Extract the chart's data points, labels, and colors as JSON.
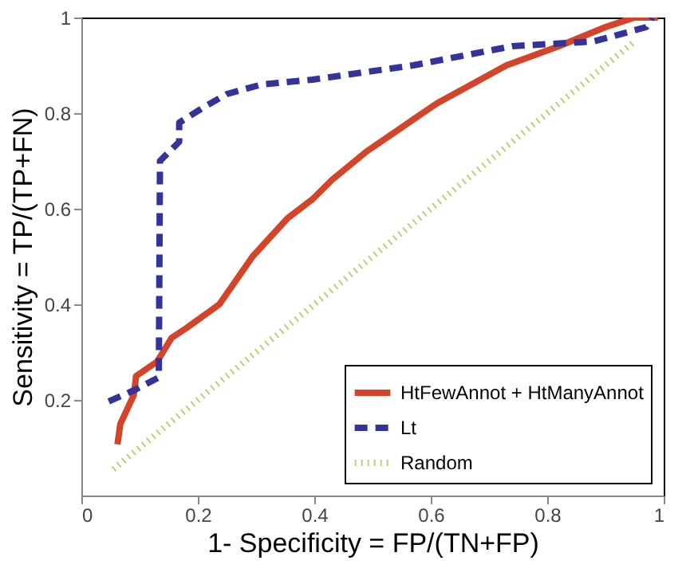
{
  "chart_data": {
    "type": "line",
    "xlabel": "1- Specificity = FP/(TN+FP)",
    "ylabel": "Sensitivity = TP/(TP+FN)",
    "xlim": [
      0,
      1
    ],
    "ylim": [
      0,
      1
    ],
    "xticks": [
      0,
      0.2,
      0.4,
      0.6,
      0.8,
      1
    ],
    "yticks": [
      0.2,
      0.4,
      0.6,
      0.8,
      1
    ],
    "grid": false,
    "legend": "bottom right",
    "marker": "none",
    "series": [
      {
        "name": "HtFewAnnot + HtManyAnnot",
        "color": "#d2452a",
        "line_style": "solid",
        "x": [
          0.062,
          0.067,
          0.09,
          0.094,
          0.13,
          0.155,
          0.18,
          0.237,
          0.294,
          0.354,
          0.397,
          0.43,
          0.49,
          0.61,
          0.73,
          0.82,
          0.9,
          0.95,
          0.99
        ],
        "values": [
          0.107,
          0.15,
          0.21,
          0.25,
          0.28,
          0.33,
          0.35,
          0.4,
          0.5,
          0.58,
          0.62,
          0.66,
          0.72,
          0.82,
          0.9,
          0.94,
          0.98,
          1.0,
          1.0
        ]
      },
      {
        "name": "Lt",
        "color": "#333399",
        "line_style": "dashed",
        "x": [
          0.047,
          0.09,
          0.133,
          0.135,
          0.168,
          0.168,
          0.207,
          0.25,
          0.31,
          0.397,
          0.57,
          0.74,
          0.88,
          0.97,
          0.98
        ],
        "values": [
          0.197,
          0.22,
          0.247,
          0.7,
          0.74,
          0.78,
          0.81,
          0.84,
          0.86,
          0.87,
          0.9,
          0.94,
          0.95,
          0.98,
          1.0
        ]
      },
      {
        "name": "Random",
        "color": "#c8c878",
        "line_style": "dotted",
        "x": [
          0.055,
          0.95
        ],
        "values": [
          0.055,
          0.95
        ]
      }
    ]
  }
}
